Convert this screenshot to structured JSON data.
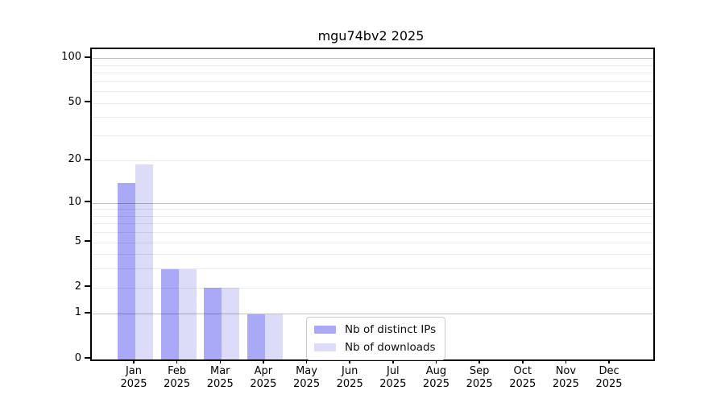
{
  "title": "mgu74bv2 2025",
  "colors": {
    "ips": "#a9a9f7",
    "downloads": "#dcdcf9",
    "grid_major": "rgba(0,0,0,0.25)",
    "grid_minor": "rgba(0,0,0,0.08)",
    "axis": "#000000",
    "legend_border": "#cccccc",
    "background": "#ffffff"
  },
  "legend": {
    "items": [
      {
        "key": "ips",
        "label": "Nb of distinct IPs"
      },
      {
        "key": "downloads",
        "label": "Nb of downloads"
      }
    ]
  },
  "x_axis": {
    "months": [
      "Jan",
      "Feb",
      "Mar",
      "Apr",
      "May",
      "Jun",
      "Jul",
      "Aug",
      "Sep",
      "Oct",
      "Nov",
      "Dec"
    ],
    "year": "2025"
  },
  "chart_data": {
    "type": "bar",
    "title": "mgu74bv2 2025",
    "categories": [
      "Jan 2025",
      "Feb 2025",
      "Mar 2025",
      "Apr 2025",
      "May 2025",
      "Jun 2025",
      "Jul 2025",
      "Aug 2025",
      "Sep 2025",
      "Oct 2025",
      "Nov 2025",
      "Dec 2025"
    ],
    "series": [
      {
        "name": "Nb of distinct IPs",
        "values": [
          14,
          3,
          2,
          1,
          0,
          0,
          0,
          0,
          0,
          0,
          0,
          0
        ]
      },
      {
        "name": "Nb of downloads",
        "values": [
          19,
          3,
          2,
          1,
          0,
          0,
          0,
          0,
          0,
          0,
          0,
          0
        ]
      }
    ],
    "yscale": "log1p",
    "y_ticks": [
      0,
      1,
      2,
      5,
      10,
      20,
      50,
      100
    ],
    "grid_major_values": [
      1,
      10,
      100
    ],
    "grid_minor_values": [
      2,
      3,
      4,
      5,
      6,
      7,
      8,
      9,
      20,
      30,
      40,
      50,
      60,
      70,
      80,
      90
    ],
    "ylim": [
      0,
      116
    ],
    "grid": true,
    "legend_position": "lower center (inside plot)",
    "xlabel": "",
    "ylabel": ""
  }
}
